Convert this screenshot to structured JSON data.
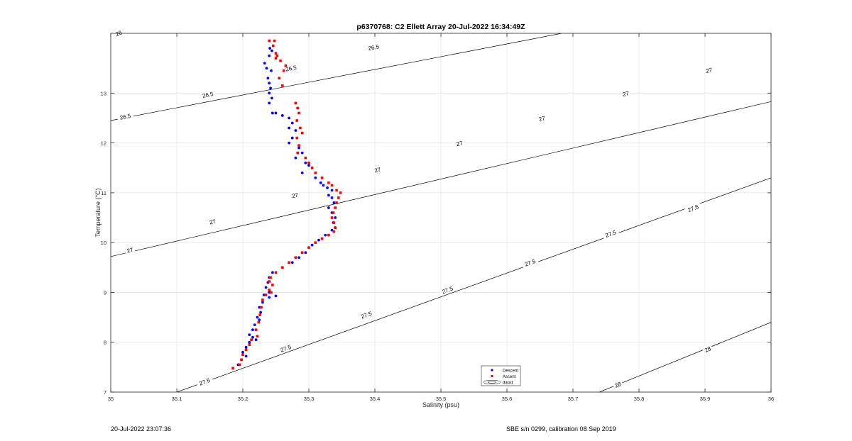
{
  "chart_data": {
    "type": "scatter",
    "title": "p6370768: C2 Ellett Array 20-Jul-2022 16:34:49Z",
    "xlabel": "Salinity (psu)",
    "ylabel": "Temperature (°C)",
    "xlim": [
      35,
      36
    ],
    "ylim": [
      7,
      14.2
    ],
    "x_ticks": [
      "35",
      "35.1",
      "35.2",
      "35.3",
      "35.4",
      "35.5",
      "35.6",
      "35.7",
      "35.8",
      "35.9",
      "36"
    ],
    "y_ticks": [
      "7",
      "8",
      "9",
      "10",
      "11",
      "12",
      "13"
    ],
    "grid": true,
    "legend_position": "bottom-center",
    "legend": [
      "Descent",
      "Ascent",
      "data1"
    ],
    "colors": {
      "descent": "#0000ff",
      "ascent": "#ff0000",
      "contour": "#000000",
      "grid": "#e6e6e6",
      "axis": "#262626"
    },
    "series": [
      {
        "name": "Descent",
        "points": [
          [
            35.241,
            13.9
          ],
          [
            35.244,
            13.85
          ],
          [
            35.24,
            13.75
          ],
          [
            35.233,
            13.6
          ],
          [
            35.236,
            13.5
          ],
          [
            35.243,
            13.45
          ],
          [
            35.238,
            13.3
          ],
          [
            35.24,
            13.2
          ],
          [
            35.242,
            13.1
          ],
          [
            35.24,
            13.0
          ],
          [
            35.244,
            12.9
          ],
          [
            35.24,
            12.8
          ],
          [
            35.245,
            12.6
          ],
          [
            35.25,
            12.6
          ],
          [
            35.26,
            12.55
          ],
          [
            35.27,
            12.5
          ],
          [
            35.275,
            12.4
          ],
          [
            35.27,
            12.3
          ],
          [
            35.28,
            12.25
          ],
          [
            35.275,
            12.1
          ],
          [
            35.27,
            12.0
          ],
          [
            35.285,
            11.9
          ],
          [
            35.29,
            11.8
          ],
          [
            35.28,
            11.7
          ],
          [
            35.295,
            11.6
          ],
          [
            35.3,
            11.55
          ],
          [
            35.29,
            11.4
          ],
          [
            35.31,
            11.3
          ],
          [
            35.318,
            11.2
          ],
          [
            35.322,
            11.15
          ],
          [
            35.328,
            11.1
          ],
          [
            35.335,
            11.05
          ],
          [
            35.33,
            10.95
          ],
          [
            35.335,
            10.9
          ],
          [
            35.338,
            10.8
          ],
          [
            35.33,
            10.7
          ],
          [
            35.335,
            10.6
          ],
          [
            35.34,
            10.5
          ],
          [
            35.337,
            10.4
          ],
          [
            35.34,
            10.3
          ],
          [
            35.335,
            10.25
          ],
          [
            35.325,
            10.15
          ],
          [
            35.315,
            10.05
          ],
          [
            35.305,
            9.95
          ],
          [
            35.295,
            9.8
          ],
          [
            35.285,
            9.7
          ],
          [
            35.275,
            9.6
          ],
          [
            35.26,
            9.5
          ],
          [
            35.245,
            9.4
          ],
          [
            35.24,
            9.3
          ],
          [
            35.238,
            9.2
          ],
          [
            35.235,
            9.1
          ],
          [
            35.24,
            9.0
          ],
          [
            35.232,
            8.95
          ],
          [
            35.25,
            8.93
          ],
          [
            35.24,
            8.9
          ],
          [
            35.23,
            8.8
          ],
          [
            35.225,
            8.7
          ],
          [
            35.227,
            8.6
          ],
          [
            35.222,
            8.5
          ],
          [
            35.225,
            8.45
          ],
          [
            35.218,
            8.35
          ],
          [
            35.215,
            8.25
          ],
          [
            35.21,
            8.15
          ],
          [
            35.215,
            8.1
          ],
          [
            35.22,
            8.05
          ],
          [
            35.21,
            8.0
          ],
          [
            35.205,
            7.9
          ],
          [
            35.2,
            7.8
          ],
          [
            35.205,
            7.72
          ],
          [
            35.198,
            7.65
          ],
          [
            35.193,
            7.55
          ]
        ]
      },
      {
        "name": "Ascent",
        "points": [
          [
            35.24,
            14.05
          ],
          [
            35.248,
            14.05
          ],
          [
            35.246,
            13.95
          ],
          [
            35.25,
            13.8
          ],
          [
            35.252,
            13.75
          ],
          [
            35.25,
            13.7
          ],
          [
            35.257,
            13.65
          ],
          [
            35.265,
            13.55
          ],
          [
            35.262,
            13.45
          ],
          [
            35.255,
            13.3
          ],
          [
            35.26,
            13.15
          ],
          [
            35.28,
            12.8
          ],
          [
            35.283,
            12.7
          ],
          [
            35.285,
            12.6
          ],
          [
            35.282,
            12.45
          ],
          [
            35.287,
            12.3
          ],
          [
            35.29,
            12.2
          ],
          [
            35.282,
            12.1
          ],
          [
            35.285,
            11.95
          ],
          [
            35.283,
            11.8
          ],
          [
            35.295,
            11.7
          ],
          [
            35.3,
            11.6
          ],
          [
            35.305,
            11.5
          ],
          [
            35.31,
            11.4
          ],
          [
            35.32,
            11.3
          ],
          [
            35.33,
            11.2
          ],
          [
            35.335,
            11.15
          ],
          [
            35.342,
            11.05
          ],
          [
            35.348,
            11.0
          ],
          [
            35.345,
            10.9
          ],
          [
            35.342,
            10.8
          ],
          [
            35.34,
            10.7
          ],
          [
            35.337,
            10.6
          ],
          [
            35.335,
            10.5
          ],
          [
            35.338,
            10.4
          ],
          [
            35.34,
            10.3
          ],
          [
            35.338,
            10.22
          ],
          [
            35.33,
            10.15
          ],
          [
            35.32,
            10.08
          ],
          [
            35.31,
            10.0
          ],
          [
            35.3,
            9.9
          ],
          [
            35.29,
            9.8
          ],
          [
            35.28,
            9.7
          ],
          [
            35.27,
            9.6
          ],
          [
            35.26,
            9.5
          ],
          [
            35.25,
            9.4
          ],
          [
            35.242,
            9.3
          ],
          [
            35.24,
            9.22
          ],
          [
            35.245,
            9.15
          ],
          [
            35.24,
            9.05
          ],
          [
            35.243,
            9.0
          ],
          [
            35.235,
            8.95
          ],
          [
            35.23,
            8.85
          ],
          [
            35.228,
            8.7
          ],
          [
            35.226,
            8.55
          ],
          [
            35.224,
            8.4
          ],
          [
            35.22,
            8.25
          ],
          [
            35.222,
            8.12
          ],
          [
            35.213,
            8.05
          ],
          [
            35.21,
            7.95
          ],
          [
            35.205,
            7.85
          ],
          [
            35.2,
            7.75
          ],
          [
            35.198,
            7.65
          ],
          [
            35.195,
            7.55
          ],
          [
            35.185,
            7.48
          ]
        ]
      }
    ],
    "contours": [
      {
        "label": "26",
        "level": 26,
        "x": [
          35.0,
          35.035
        ],
        "y": [
          14.2,
          14.4
        ]
      },
      {
        "label": "26.5",
        "level": 26.5,
        "x": [
          35.0,
          35.683
        ],
        "y": [
          12.45,
          14.2
        ]
      },
      {
        "label": "27",
        "level": 27,
        "x": [
          35.0,
          36.0
        ],
        "y": [
          9.72,
          12.83
        ]
      },
      {
        "label": "27.5",
        "level": 27.5,
        "x": [
          35.1,
          36.0
        ],
        "y": [
          7.0,
          11.3
        ]
      },
      {
        "label": "28",
        "level": 28,
        "x": [
          35.74,
          36.0
        ],
        "y": [
          7.0,
          8.4
        ]
      }
    ],
    "contour_label_positions": [
      {
        "label": "26",
        "x": 35.012,
        "y": 14.2
      },
      {
        "label": "26.5",
        "x": 35.022,
        "y": 12.53
      },
      {
        "label": "26.5",
        "x": 35.147,
        "y": 12.97
      },
      {
        "label": "26.5",
        "x": 35.273,
        "y": 13.5
      },
      {
        "label": "26.5",
        "x": 35.398,
        "y": 13.92
      },
      {
        "label": "26.5",
        "x": 35.524,
        "y": 14.35
      },
      {
        "label": "26.5",
        "x": 35.651,
        "y": 14.78
      },
      {
        "label": "27",
        "x": 35.029,
        "y": 9.85
      },
      {
        "label": "27",
        "x": 35.154,
        "y": 10.42
      },
      {
        "label": "27",
        "x": 35.279,
        "y": 10.95
      },
      {
        "label": "27",
        "x": 35.404,
        "y": 11.46
      },
      {
        "label": "27",
        "x": 35.528,
        "y": 11.99
      },
      {
        "label": "27",
        "x": 35.653,
        "y": 12.49
      },
      {
        "label": "27",
        "x": 35.78,
        "y": 12.99
      },
      {
        "label": "27",
        "x": 35.906,
        "y": 13.46
      },
      {
        "label": "27.5",
        "x": 35.142,
        "y": 7.21
      },
      {
        "label": "27.5",
        "x": 35.265,
        "y": 7.88
      },
      {
        "label": "27.5",
        "x": 35.387,
        "y": 8.55
      },
      {
        "label": "27.5",
        "x": 35.51,
        "y": 9.05
      },
      {
        "label": "27.5",
        "x": 35.635,
        "y": 9.6
      },
      {
        "label": "27.5",
        "x": 35.757,
        "y": 10.18
      },
      {
        "label": "27.5",
        "x": 35.882,
        "y": 10.69
      },
      {
        "label": "28",
        "x": 35.768,
        "y": 7.15
      },
      {
        "label": "28",
        "x": 35.904,
        "y": 7.86
      }
    ]
  },
  "footer": {
    "timestamp": "20-Jul-2022 23:07:36",
    "calibration": "SBE s/n 0299, calibration 08 Sep 2019"
  }
}
